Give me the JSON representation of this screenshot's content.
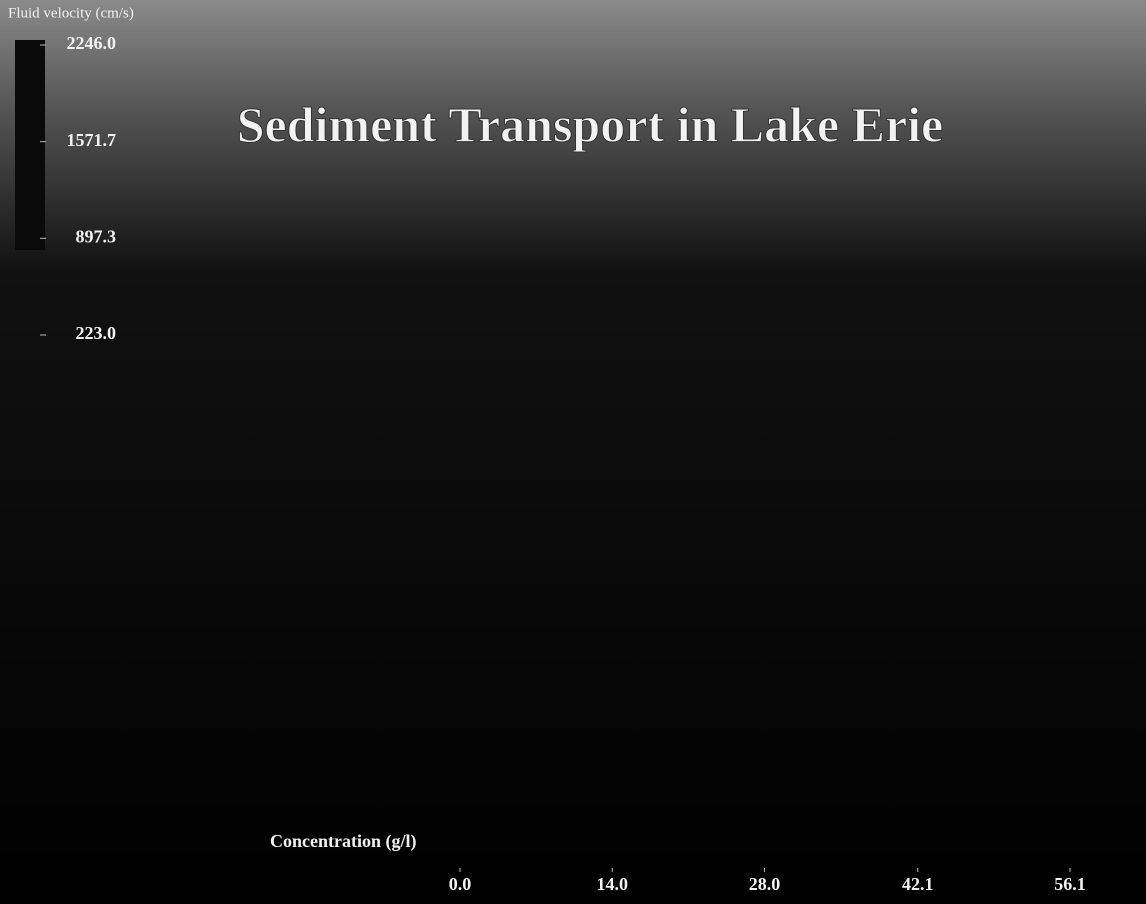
{
  "chart_data": {
    "type": "scatter",
    "title": "Sediment Transport in Lake Erie",
    "y_label": "Fluid velocity (cm/s)",
    "x_label": "Concentration (g/l)",
    "ylim": [
      223.0,
      2246.0
    ],
    "yticks": [
      {
        "value": 2246.0,
        "label": "2246.0"
      },
      {
        "value": 1571.7,
        "label": "1571.7"
      },
      {
        "value": 897.3,
        "label": "897.3"
      },
      {
        "value": 223.0,
        "label": "223.0"
      }
    ],
    "xlim": [
      0.0,
      56.1
    ],
    "xticks": [
      {
        "value": 0.0,
        "label": "0.0"
      },
      {
        "value": 14.0,
        "label": "14.0"
      },
      {
        "value": 28.0,
        "label": "28.0"
      },
      {
        "value": 42.1,
        "label": "42.1"
      },
      {
        "value": 56.1,
        "label": "56.1"
      }
    ]
  }
}
